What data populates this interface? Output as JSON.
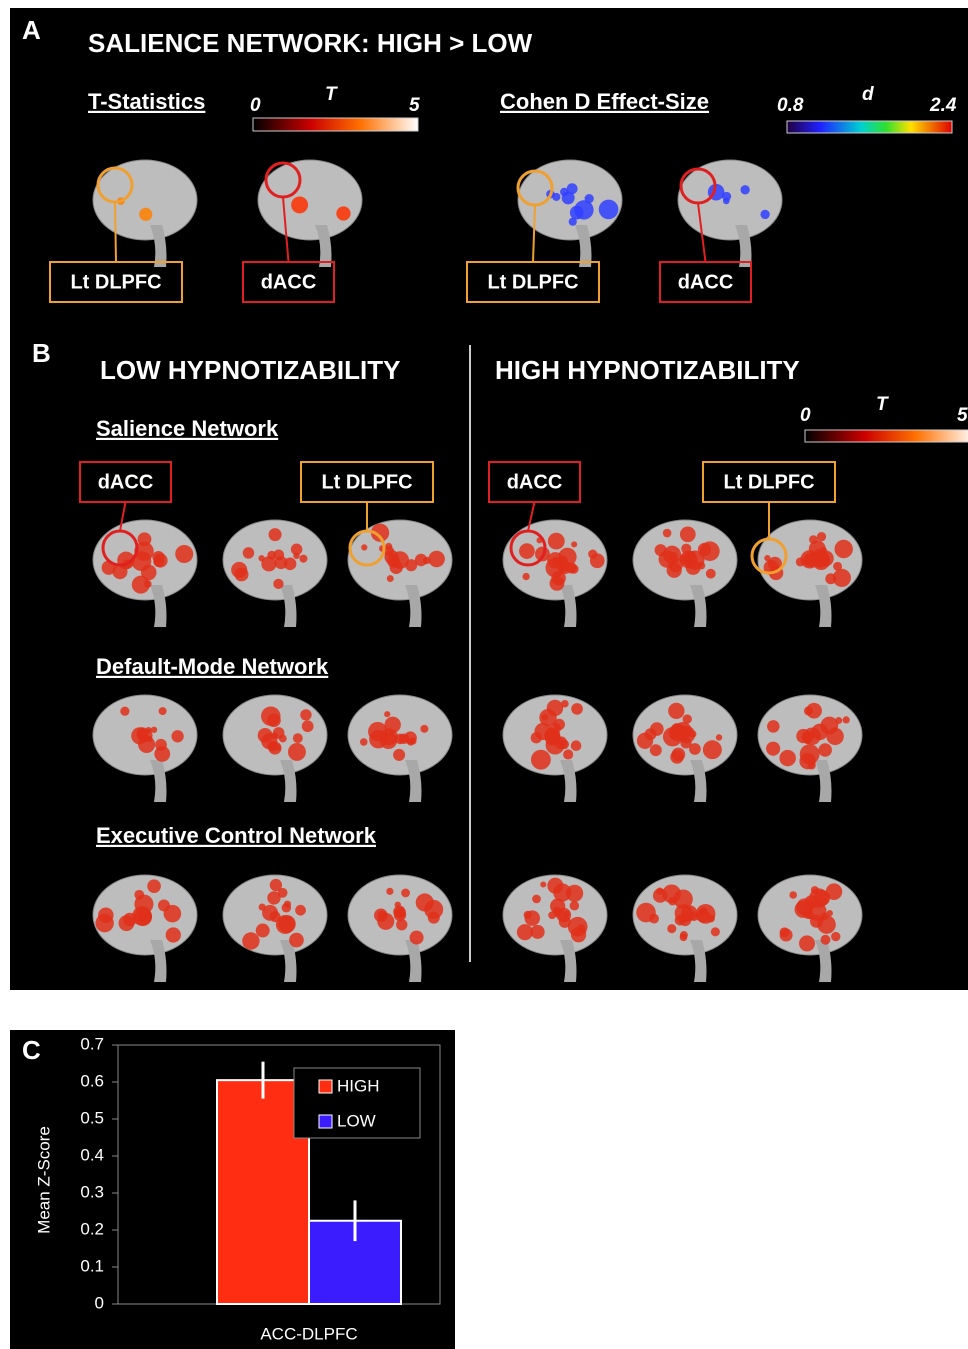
{
  "panel_a": {
    "label": "A",
    "title": "SALIENCE NETWORK: HIGH > LOW",
    "t_statistics": {
      "title": "T-Statistics",
      "min": 0,
      "symbol": "T",
      "max": 5
    },
    "effect_size": {
      "title": "Cohen D Effect-Size",
      "min": 0.8,
      "symbol": "d",
      "max": 2.4
    },
    "regions": [
      "Lt DLPFC",
      "dACC",
      "Lt DLPFC",
      "dACC"
    ]
  },
  "panel_b": {
    "label": "B",
    "groups": [
      "LOW HYPNOTIZABILITY",
      "HIGH HYPNOTIZABILITY"
    ],
    "colorbar": {
      "min": 0,
      "symbol": "T",
      "max": 5
    },
    "networks": [
      "Salience Network",
      "Default-Mode Network",
      "Executive Control Network"
    ],
    "regions": [
      "dACC",
      "Lt DLPFC",
      "dACC",
      "Lt DLPFC"
    ]
  },
  "chart_data": {
    "type": "bar",
    "label": "C",
    "ylabel": "Mean Z-Score",
    "categories": [
      "ACC-DLPFC"
    ],
    "series": [
      {
        "name": "HIGH",
        "color": "#ff2d12",
        "values": [
          0.605
        ],
        "errors": [
          0.05
        ]
      },
      {
        "name": "LOW",
        "color": "#3a1cff",
        "values": [
          0.225
        ],
        "errors": [
          0.055
        ]
      }
    ],
    "ylim": [
      0,
      0.7
    ],
    "yticks": [
      0,
      0.1,
      0.2,
      0.3,
      0.4,
      0.5,
      0.6,
      0.7
    ]
  }
}
